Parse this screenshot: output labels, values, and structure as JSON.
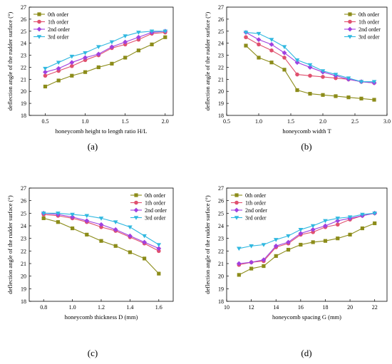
{
  "chart_data": [
    {
      "type": "line",
      "caption": "(a)",
      "xlabel": "honeycomb height to length ratio H/L",
      "ylabel": "deflection angle of the rudder surface (°)",
      "xlim": [
        0.3,
        2.1
      ],
      "ylim": [
        18,
        27
      ],
      "xticks": [
        0.5,
        1.0,
        1.5,
        2.0
      ],
      "xtick_labels": [
        "0.5",
        "1.0",
        "1.5",
        "2.0"
      ],
      "yticks": [
        18,
        19,
        20,
        21,
        22,
        23,
        24,
        25,
        26,
        27
      ],
      "ytick_labels": [
        "18",
        "19",
        "20",
        "21",
        "22",
        "23",
        "24",
        "25",
        "26",
        "27"
      ],
      "legend_position": "top-left",
      "x": [
        0.5,
        0.667,
        0.833,
        1.0,
        1.167,
        1.333,
        1.5,
        1.667,
        1.833,
        2.0
      ],
      "series": [
        {
          "name": "0th order",
          "color": "#8c8c1a",
          "marker": "square",
          "values": [
            20.4,
            20.9,
            21.3,
            21.6,
            22.0,
            22.3,
            22.8,
            23.4,
            23.9,
            24.5
          ]
        },
        {
          "name": "1th order",
          "color": "#e0506e",
          "marker": "circle",
          "values": [
            21.3,
            21.7,
            22.1,
            22.6,
            23.0,
            23.6,
            23.9,
            24.3,
            24.8,
            24.9
          ]
        },
        {
          "name": "2nd order",
          "color": "#a040e0",
          "marker": "diamond",
          "values": [
            21.6,
            21.9,
            22.4,
            22.8,
            23.1,
            23.7,
            24.1,
            24.5,
            24.9,
            25.0
          ]
        },
        {
          "name": "3rd order",
          "color": "#30b8e0",
          "marker": "triangle-down",
          "values": [
            21.9,
            22.4,
            22.9,
            23.2,
            23.7,
            24.1,
            24.6,
            24.9,
            25.0,
            25.0
          ]
        }
      ]
    },
    {
      "type": "line",
      "caption": "(b)",
      "xlabel": "honeycomb width T",
      "ylabel": "deflection angle of the rudder surface (°)",
      "xlim": [
        0.5,
        3.0
      ],
      "ylim": [
        18,
        27
      ],
      "xticks": [
        0.5,
        1.0,
        1.5,
        2.0,
        2.5,
        3.0
      ],
      "xtick_labels": [
        "0.5",
        "1.0",
        "1.5",
        "2.0",
        "2.5",
        "3.0"
      ],
      "yticks": [
        18,
        19,
        20,
        21,
        22,
        23,
        24,
        25,
        26,
        27
      ],
      "ytick_labels": [
        "18",
        "19",
        "20",
        "21",
        "22",
        "23",
        "24",
        "25",
        "26",
        "27"
      ],
      "legend_position": "top-right",
      "x": [
        0.8,
        1.0,
        1.2,
        1.4,
        1.6,
        1.8,
        2.0,
        2.2,
        2.4,
        2.6,
        2.8
      ],
      "series": [
        {
          "name": "0th order",
          "color": "#8c8c1a",
          "marker": "square",
          "values": [
            23.8,
            22.8,
            22.4,
            21.8,
            20.1,
            19.8,
            19.7,
            19.6,
            19.5,
            19.4,
            19.3
          ]
        },
        {
          "name": "1th order",
          "color": "#e0506e",
          "marker": "circle",
          "values": [
            24.5,
            23.9,
            23.4,
            22.8,
            21.4,
            21.3,
            21.2,
            21.1,
            21.0,
            20.8,
            20.7
          ]
        },
        {
          "name": "2nd order",
          "color": "#a040e0",
          "marker": "diamond",
          "values": [
            24.9,
            24.3,
            23.9,
            23.2,
            22.4,
            22.0,
            21.6,
            21.3,
            21.0,
            20.8,
            20.7
          ]
        },
        {
          "name": "3rd order",
          "color": "#30b8e0",
          "marker": "triangle-down",
          "values": [
            24.9,
            24.8,
            24.3,
            23.7,
            22.6,
            22.2,
            21.7,
            21.4,
            21.1,
            20.8,
            20.8
          ]
        }
      ]
    },
    {
      "type": "line",
      "caption": "(c)",
      "xlabel": "honeycomb thickness D (mm)",
      "ylabel": "deflection angle of the rudder surface (°)",
      "xlim": [
        0.7,
        1.7
      ],
      "ylim": [
        18,
        27
      ],
      "xticks": [
        0.8,
        1.0,
        1.2,
        1.4,
        1.6
      ],
      "xtick_labels": [
        "0.8",
        "1.0",
        "1.2",
        "1.4",
        "1.6"
      ],
      "yticks": [
        18,
        19,
        20,
        21,
        22,
        23,
        24,
        25,
        26,
        27
      ],
      "ytick_labels": [
        "18",
        "19",
        "20",
        "21",
        "22",
        "23",
        "24",
        "25",
        "26",
        "27"
      ],
      "legend_position": "top-right",
      "x": [
        0.8,
        0.9,
        1.0,
        1.1,
        1.2,
        1.3,
        1.4,
        1.5,
        1.6
      ],
      "series": [
        {
          "name": "0th order",
          "color": "#8c8c1a",
          "marker": "square",
          "values": [
            24.6,
            24.3,
            23.8,
            23.3,
            22.8,
            22.4,
            21.9,
            21.4,
            20.2
          ]
        },
        {
          "name": "1th order",
          "color": "#e0506e",
          "marker": "circle",
          "values": [
            24.9,
            24.8,
            24.6,
            24.3,
            23.9,
            23.6,
            23.1,
            22.6,
            22.0
          ]
        },
        {
          "name": "2nd order",
          "color": "#a040e0",
          "marker": "diamond",
          "values": [
            25.0,
            24.9,
            24.7,
            24.4,
            24.1,
            23.7,
            23.2,
            22.7,
            22.2
          ]
        },
        {
          "name": "3rd order",
          "color": "#30b8e0",
          "marker": "triangle-down",
          "values": [
            25.0,
            25.0,
            24.9,
            24.8,
            24.6,
            24.3,
            23.9,
            23.2,
            22.5
          ]
        }
      ]
    },
    {
      "type": "line",
      "caption": "(d)",
      "xlabel": "honeycomb spacing G (mm)",
      "ylabel": "deflection angle of the rudder surface (°)",
      "xlim": [
        10,
        23
      ],
      "ylim": [
        18,
        27
      ],
      "xticks": [
        10,
        12,
        14,
        16,
        18,
        20,
        22
      ],
      "xtick_labels": [
        "10",
        "12",
        "14",
        "16",
        "18",
        "20",
        "22"
      ],
      "yticks": [
        18,
        19,
        20,
        21,
        22,
        23,
        24,
        25,
        26,
        27
      ],
      "ytick_labels": [
        "18",
        "19",
        "20",
        "21",
        "22",
        "23",
        "24",
        "25",
        "26",
        "27"
      ],
      "legend_position": "top-left",
      "x": [
        11,
        12,
        13,
        14,
        15,
        16,
        17,
        18,
        19,
        20,
        21,
        22
      ],
      "series": [
        {
          "name": "0th order",
          "color": "#8c8c1a",
          "marker": "square",
          "values": [
            20.1,
            20.6,
            20.8,
            21.6,
            22.1,
            22.5,
            22.7,
            22.8,
            23.0,
            23.3,
            23.8,
            24.2
          ]
        },
        {
          "name": "1th order",
          "color": "#e0506e",
          "marker": "circle",
          "values": [
            20.9,
            21.1,
            21.2,
            22.3,
            22.6,
            23.3,
            23.5,
            23.9,
            24.1,
            24.5,
            24.8,
            25.0
          ]
        },
        {
          "name": "2nd order",
          "color": "#a040e0",
          "marker": "diamond",
          "values": [
            21.0,
            21.1,
            21.3,
            22.4,
            22.7,
            23.4,
            23.7,
            24.0,
            24.4,
            24.6,
            24.8,
            25.0
          ]
        },
        {
          "name": "3rd order",
          "color": "#30b8e0",
          "marker": "triangle-down",
          "values": [
            22.2,
            22.4,
            22.5,
            22.9,
            23.2,
            23.7,
            24.0,
            24.4,
            24.6,
            24.7,
            24.9,
            25.0
          ]
        }
      ]
    }
  ]
}
